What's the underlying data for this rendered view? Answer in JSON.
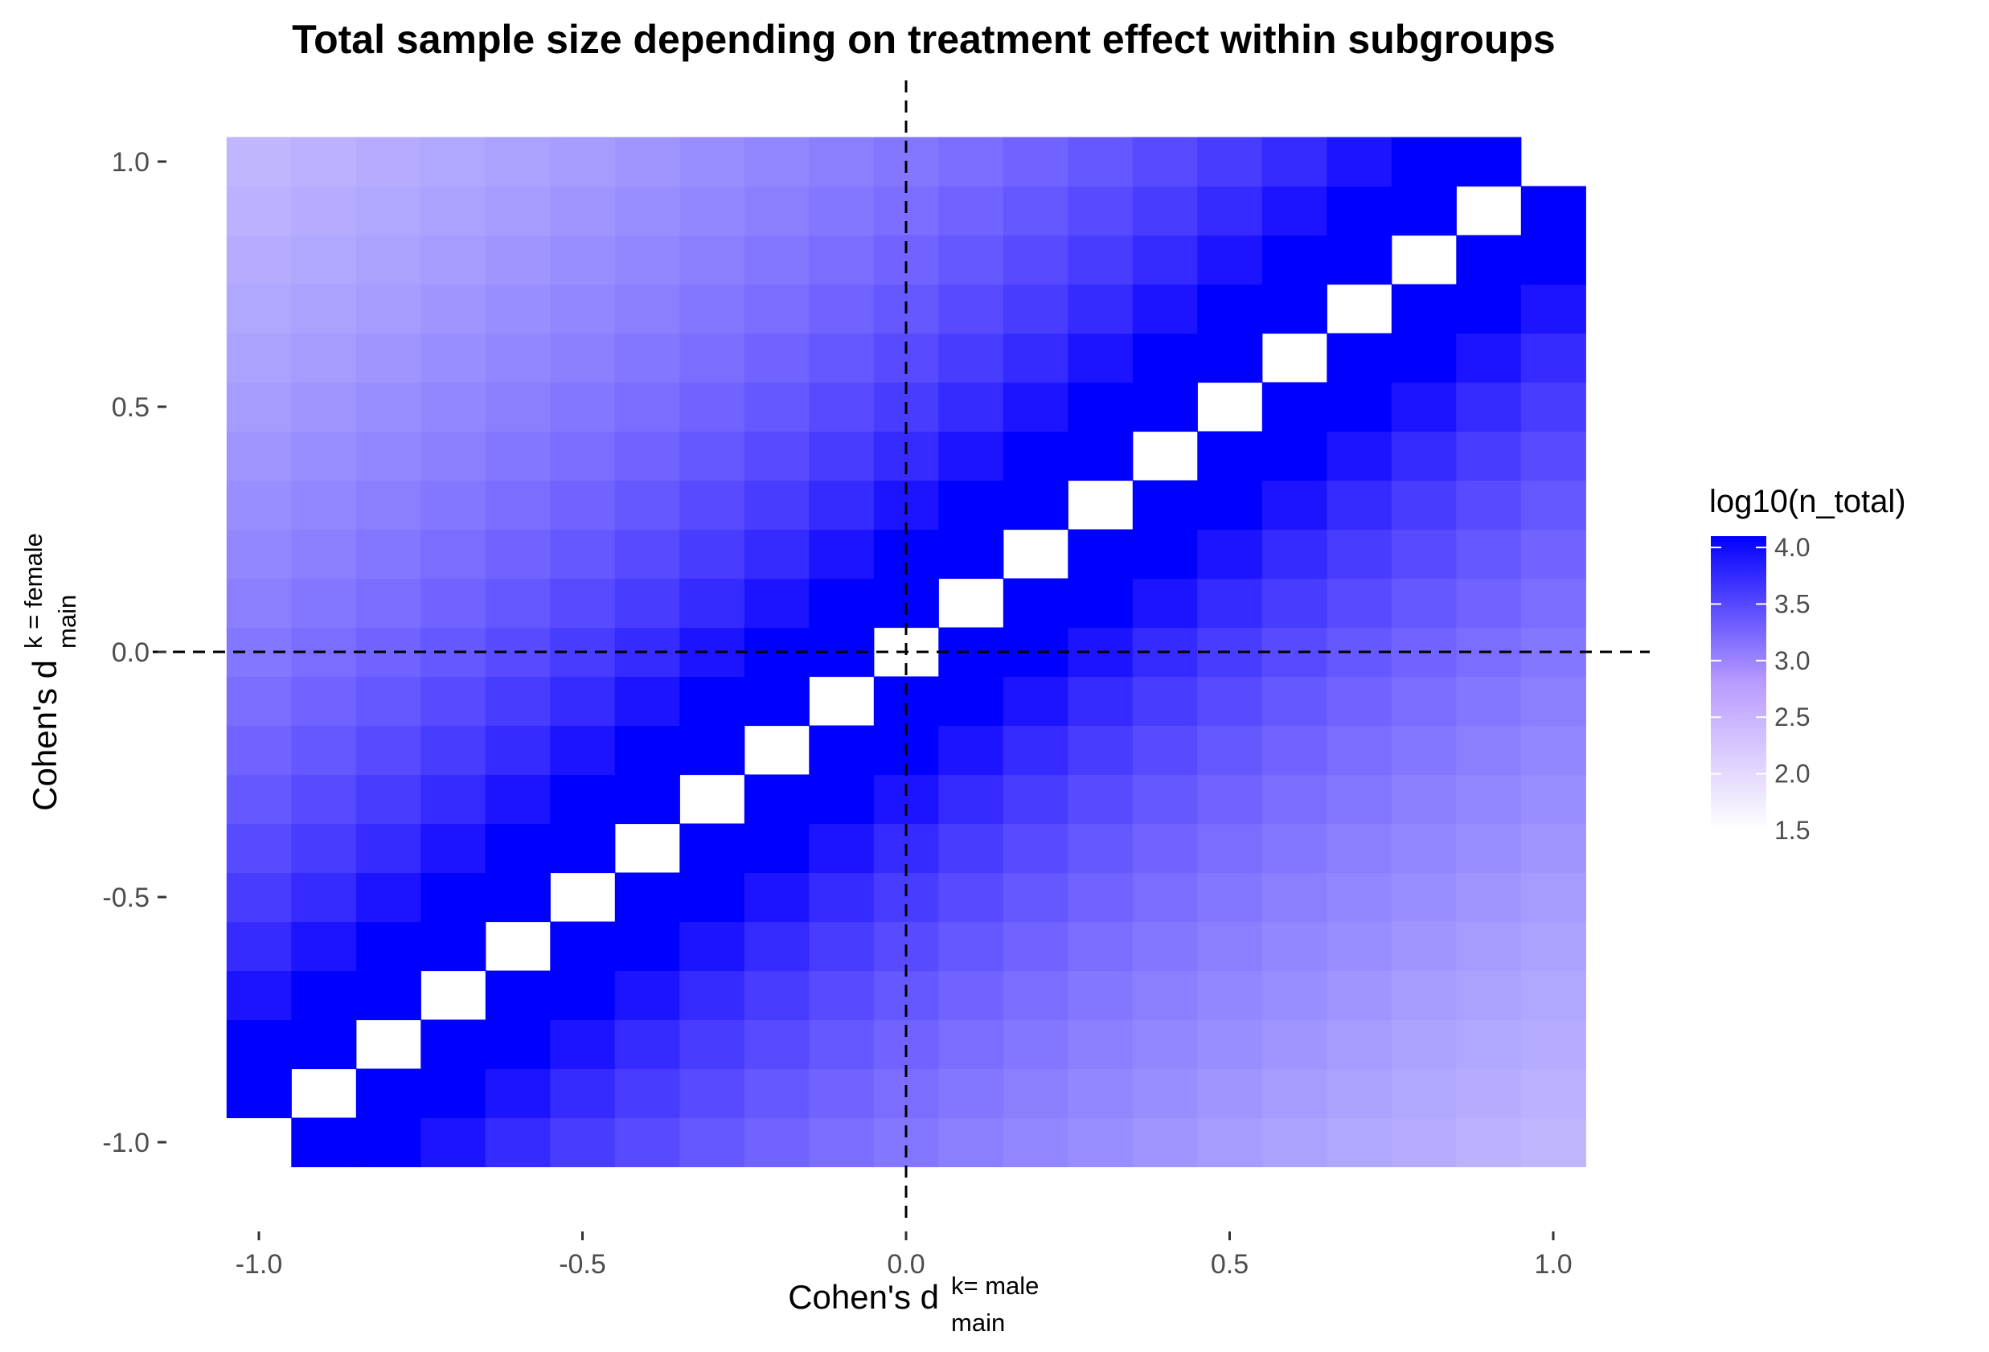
{
  "chart_data": {
    "type": "heatmap",
    "title": "Total sample size depending on treatment effect within subgroups",
    "xlabel": {
      "main": "Cohen's d",
      "superscript": "k= male",
      "subscript": "main"
    },
    "ylabel": {
      "main": "Cohen's d",
      "superscript": "k = female",
      "subscript": "main"
    },
    "x_range": [
      -1.05,
      1.05
    ],
    "y_range": [
      -1.05,
      1.05
    ],
    "x_step": 0.1,
    "y_step": 0.1,
    "xticks": [
      -1.0,
      -0.5,
      0.0,
      0.5,
      1.0
    ],
    "xtick_labels": [
      "-1.0",
      "-0.5",
      "0.0",
      "0.5",
      "1.0"
    ],
    "yticks": [
      -1.0,
      -0.5,
      0.0,
      0.5,
      1.0
    ],
    "ytick_labels": [
      "-1.0",
      "-0.5",
      "0.0",
      "0.5",
      "1.0"
    ],
    "reference_lines": {
      "x": 0.0,
      "y": 0.0,
      "style": "dashed"
    },
    "missing_cells": "cells where x = y (no sample size)",
    "fill_variable": "log10(n_total)",
    "fill_formula": "log10(n_total) ≈ 1.56 + 2 * log10(4 / |x - y|)",
    "grid": false,
    "legend": {
      "title": "log10(n_total)",
      "position": "right",
      "ticks": [
        4.0,
        3.5,
        3.0,
        2.5,
        2.0,
        1.5
      ],
      "tick_labels": [
        "4.0",
        "3.5",
        "3.0",
        "2.5",
        "2.0",
        "1.5"
      ],
      "range": [
        1.5,
        4.1
      ],
      "color_low": "#ffffff",
      "color_high": "#0000ff"
    }
  }
}
